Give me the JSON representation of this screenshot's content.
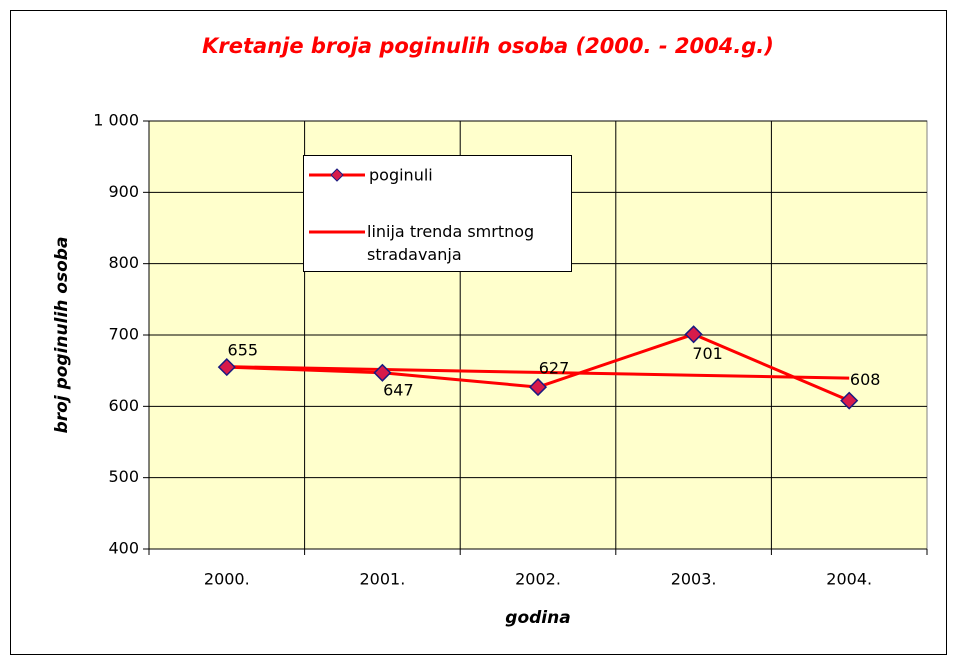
{
  "chart_data": {
    "type": "line",
    "title": "Kretanje broja poginulih osoba (2000. - 2004.g.)",
    "x_label": "godina",
    "y_label": "broj poginulih osoba",
    "categories": [
      "2000.",
      "2001.",
      "2002.",
      "2003.",
      "2004."
    ],
    "series": [
      {
        "name": "poginuli",
        "color": "#ff0000",
        "marker_color": "#d81b4a",
        "marker_edge": "#1a1a80",
        "values": [
          655,
          647,
          627,
          701,
          608
        ],
        "data_labels": true
      },
      {
        "name": "linija trenda smrtnog stradavanja",
        "color": "#ff0000",
        "values": [
          655.6,
          651.6,
          647.6,
          643.6,
          639.6
        ]
      }
    ],
    "ylim": [
      400,
      1000
    ],
    "yticks": [
      400,
      500,
      600,
      700,
      800,
      900,
      {
        "value": 1000,
        "label": "1 000"
      }
    ],
    "grid": true,
    "plot_background": "#ffffcc"
  }
}
